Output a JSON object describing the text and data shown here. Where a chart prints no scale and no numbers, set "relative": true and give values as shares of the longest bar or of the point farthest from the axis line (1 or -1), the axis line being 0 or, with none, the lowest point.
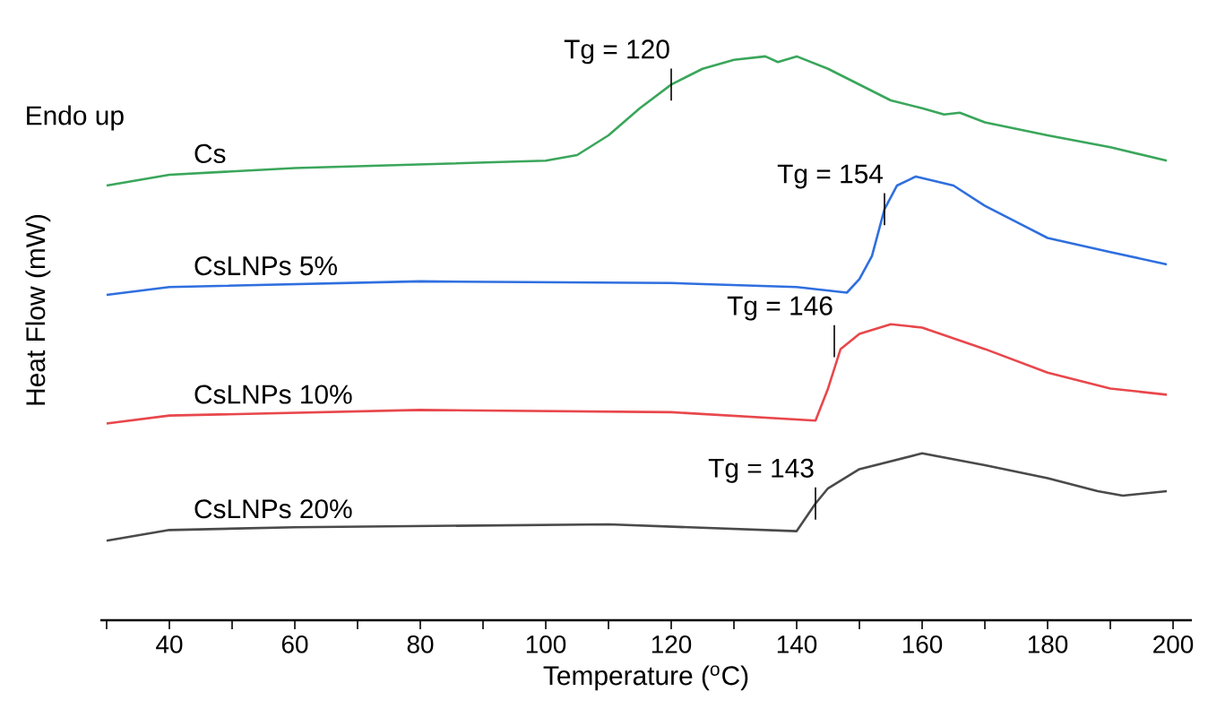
{
  "chart_data": {
    "type": "line",
    "relative": true,
    "xlabel": "Temperature ($^{o}$C)",
    "ylabel": "Heat Flow (mW)",
    "xlim": [
      29,
      203
    ],
    "xticks": [
      {
        "value": 30,
        "label": null
      },
      40,
      {
        "value": 50,
        "label": null
      },
      60,
      {
        "value": 70,
        "label": null
      },
      80,
      {
        "value": 90,
        "label": null
      },
      100,
      {
        "value": 110,
        "label": null
      },
      120,
      {
        "value": 130,
        "label": null
      },
      140,
      {
        "value": 150,
        "label": null
      },
      160,
      {
        "value": 170,
        "label": null
      },
      180,
      {
        "value": 190,
        "label": null
      },
      200
    ],
    "series": [
      {
        "name": "Cs",
        "color": "#3aa65b",
        "x": [
          30,
          40,
          60,
          100,
          105,
          110,
          115,
          120,
          125,
          130,
          135,
          137,
          140,
          145,
          150,
          155,
          160,
          163.5,
          166,
          170,
          180,
          190,
          199
        ],
        "values": [
          0.771,
          0.79,
          0.802,
          0.815,
          0.825,
          0.86,
          0.908,
          0.95,
          0.978,
          0.994,
          1.0,
          0.99,
          1.0,
          0.978,
          0.95,
          0.922,
          0.908,
          0.897,
          0.9,
          0.883,
          0.86,
          0.839,
          0.815
        ]
      },
      {
        "name": "CsLNPs 5%",
        "color": "#2f6fdf",
        "x": [
          30,
          40,
          80,
          120,
          140,
          148,
          150,
          152,
          154,
          156,
          159,
          165,
          170,
          180,
          190,
          199
        ],
        "values": [
          0.577,
          0.591,
          0.601,
          0.598,
          0.591,
          0.581,
          0.605,
          0.646,
          0.729,
          0.771,
          0.787,
          0.771,
          0.735,
          0.678,
          0.653,
          0.631
        ]
      },
      {
        "name": "CsLNPs 10%",
        "color": "#e8474c",
        "x": [
          30,
          40,
          80,
          120,
          143,
          145,
          147,
          150,
          155,
          160,
          170,
          180,
          190,
          199
        ],
        "values": [
          0.349,
          0.363,
          0.373,
          0.369,
          0.354,
          0.411,
          0.481,
          0.508,
          0.525,
          0.519,
          0.481,
          0.439,
          0.411,
          0.4
        ]
      },
      {
        "name": "CsLNPs 20%",
        "color": "#4a4a4a",
        "x": [
          30,
          40,
          60,
          110,
          140,
          143,
          145,
          150,
          160,
          170,
          180,
          188,
          192,
          199
        ],
        "values": [
          0.141,
          0.16,
          0.165,
          0.17,
          0.158,
          0.207,
          0.234,
          0.268,
          0.296,
          0.275,
          0.252,
          0.229,
          0.221,
          0.229
        ]
      }
    ],
    "annotations": [
      {
        "text": "Tg = 120",
        "x": 120,
        "y": 0.95
      },
      {
        "text": "Tg = 154",
        "x": 154,
        "y": 0.729
      },
      {
        "text": "Tg = 146",
        "x": 146,
        "y": 0.495
      },
      {
        "text": "Tg = 143",
        "x": 143,
        "y": 0.207
      },
      "Endo up"
    ]
  }
}
